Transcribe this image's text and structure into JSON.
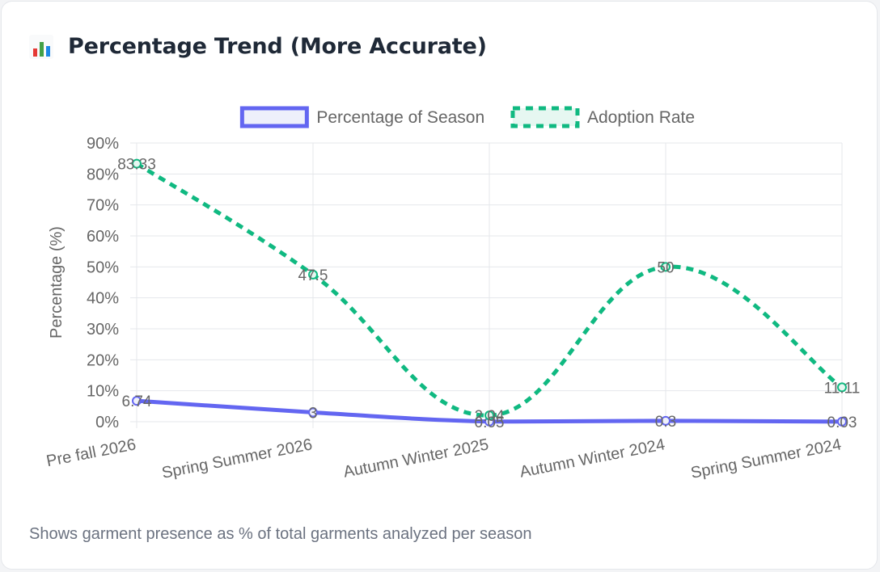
{
  "title": {
    "icon": "bar-chart-icon",
    "text": "Percentage Trend (More Accurate)"
  },
  "footnote": "Shows garment presence as % of total garments analyzed per season",
  "colors": {
    "series1": "#6366f1",
    "series1_fill": "#eef0fb",
    "series2": "#10b981",
    "series2_fill": "#e6f7f1",
    "grid": "#e5e7eb",
    "axis_text": "#666666"
  },
  "chart_data": {
    "type": "line",
    "ylabel": "Percentage (%)",
    "ylim": [
      0,
      90
    ],
    "ytick_step": 10,
    "ytick_suffix": "%",
    "grid": true,
    "legend": "top-center",
    "categories": [
      "Pre fall 2026",
      "Spring Summer 2026",
      "Autumn Winter 2025",
      "Autumn Winter 2024",
      "Spring Summer 2024"
    ],
    "series": [
      {
        "name": "Percentage of Season",
        "values": [
          6.74,
          3,
          0.05,
          0.3,
          0.03
        ],
        "labels": [
          "6.74",
          "3",
          "0.05",
          "0.3",
          "0.03"
        ],
        "style": "solid"
      },
      {
        "name": "Adoption Rate",
        "values": [
          83.33,
          47.5,
          2.04,
          50,
          11.11
        ],
        "labels": [
          "83.33",
          "47.5",
          "2.04",
          "50",
          "11.11"
        ],
        "style": "dashed"
      }
    ]
  }
}
